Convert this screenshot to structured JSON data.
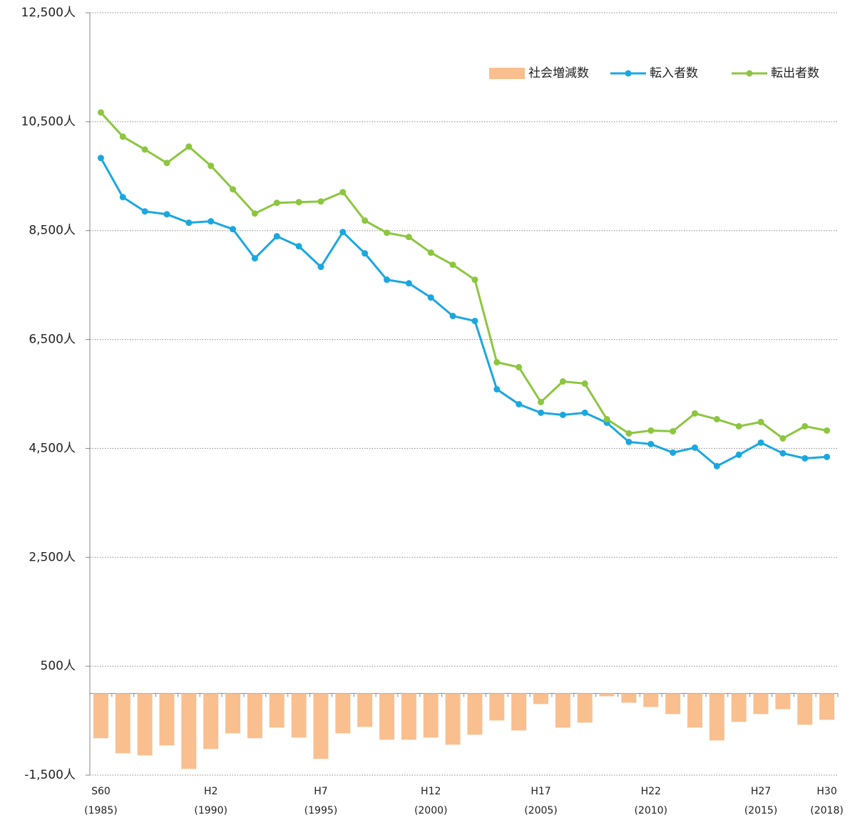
{
  "chart_data": {
    "type": "combo",
    "categories": [
      "S60",
      null,
      null,
      null,
      null,
      "H2",
      null,
      null,
      null,
      null,
      "H7",
      null,
      null,
      null,
      null,
      "H12",
      null,
      null,
      null,
      null,
      "H17",
      null,
      null,
      null,
      null,
      "H22",
      null,
      null,
      null,
      null,
      "H27",
      null,
      null,
      "H30"
    ],
    "x_sublabels": [
      "(1985)",
      null,
      null,
      null,
      null,
      "(1990)",
      null,
      null,
      null,
      null,
      "(1995)",
      null,
      null,
      null,
      null,
      "(2000)",
      null,
      null,
      null,
      null,
      "(2005)",
      null,
      null,
      null,
      null,
      "(2010)",
      null,
      null,
      null,
      null,
      "(2015)",
      null,
      null,
      "(2018)"
    ],
    "series": [
      {
        "name": "社会増減数",
        "type": "bar",
        "color": "#f9bf8f",
        "values": [
          -823,
          -1098,
          -1137,
          -954,
          -1386,
          -1020,
          -732,
          -823,
          -627,
          -810,
          -1202,
          -732,
          -614,
          -850,
          -850,
          -810,
          -941,
          -758,
          -497,
          -680,
          -196,
          -627,
          -536,
          -52,
          -170,
          -248,
          -379,
          -627,
          -863,
          -523,
          -379,
          -288,
          -575,
          -484
        ]
      },
      {
        "name": "転入者数",
        "type": "line",
        "color": "#1aa7e0",
        "values": [
          9834,
          9115,
          8853,
          8801,
          8645,
          8671,
          8527,
          7991,
          8396,
          8213,
          7834,
          8474,
          8082,
          7598,
          7533,
          7272,
          6932,
          6841,
          5586,
          5312,
          5155,
          5116,
          5155,
          4972,
          4619,
          4580,
          4423,
          4514,
          4175,
          4384,
          4606,
          4410,
          4318,
          4344
        ]
      },
      {
        "name": "転出者数",
        "type": "line",
        "color": "#8cc63f",
        "values": [
          10670,
          10226,
          9990,
          9742,
          10043,
          9690,
          9259,
          8814,
          9010,
          9023,
          9036,
          9206,
          8684,
          8461,
          8383,
          8095,
          7873,
          7598,
          6083,
          5992,
          5351,
          5730,
          5691,
          5037,
          4776,
          4828,
          4815,
          5142,
          5037,
          4907,
          4985,
          4684,
          4907,
          4828
        ]
      }
    ],
    "ylim": [
      -1500,
      12500
    ],
    "yticks": [
      {
        "value": -1500,
        "label": "-1,500人"
      },
      {
        "value": 500,
        "label": "500人"
      },
      {
        "value": 2500,
        "label": "2,500人"
      },
      {
        "value": 4500,
        "label": "4,500人"
      },
      {
        "value": 6500,
        "label": "6,500人"
      },
      {
        "value": 8500,
        "label": "8,500人"
      },
      {
        "value": 10500,
        "label": "10,500人"
      },
      {
        "value": 12500,
        "label": "12,500人"
      }
    ],
    "grid": true,
    "legend": "top-right"
  }
}
